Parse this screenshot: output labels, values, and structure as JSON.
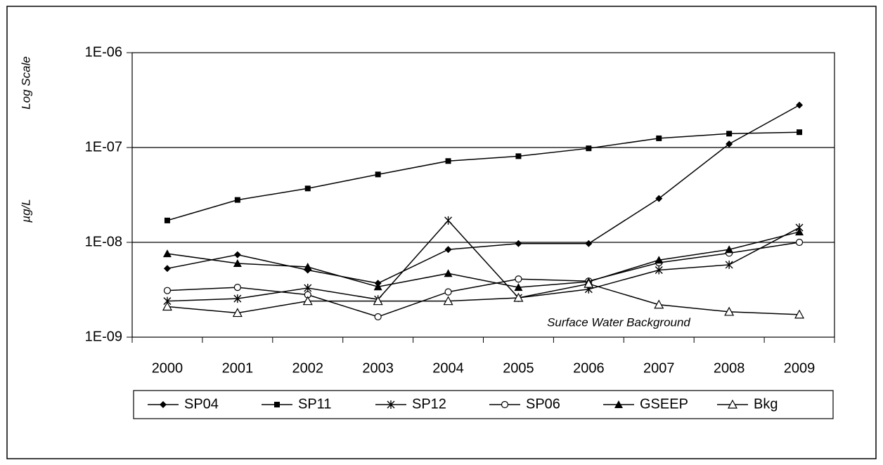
{
  "chart_data": {
    "type": "line",
    "axis_labels": [
      "Log Scale",
      "µg/L"
    ],
    "annotation": "Surface Water Background",
    "categories": [
      "2000",
      "2001",
      "2002",
      "2003",
      "2004",
      "2005",
      "2006",
      "2007",
      "2008",
      "2009"
    ],
    "log_scale": true,
    "grid": true,
    "legend": "bottom",
    "ylim": [
      1e-09,
      1e-06
    ],
    "yticks": [
      {
        "value": 1e-09,
        "label": "1E-09"
      },
      {
        "value": 1e-08,
        "label": "1E-08"
      },
      {
        "value": 1e-07,
        "label": "1E-07"
      },
      {
        "value": 1e-06,
        "label": "1E-06"
      }
    ],
    "series": [
      {
        "name": "SP04",
        "color": "#000000",
        "marker": "diamond",
        "values": [
          5.3e-09,
          7.4e-09,
          5.1e-09,
          3.7e-09,
          8.4e-09,
          9.7e-09,
          9.7e-09,
          2.9e-08,
          1.09e-07,
          2.8e-07
        ]
      },
      {
        "name": "SP11",
        "color": "#000000",
        "marker": "square",
        "values": [
          1.7e-08,
          2.8e-08,
          3.7e-08,
          5.2e-08,
          7.2e-08,
          8.1e-08,
          9.8e-08,
          1.25e-07,
          1.4e-07,
          1.45e-07
        ]
      },
      {
        "name": "SP12",
        "color": "#000000",
        "marker": "star",
        "values": [
          2.4e-09,
          2.55e-09,
          3.3e-09,
          2.5e-09,
          1.7e-08,
          2.6e-09,
          3.2e-09,
          5.1e-09,
          5.8e-09,
          1.43e-08
        ]
      },
      {
        "name": "SP06",
        "color": "#000000",
        "marker": "open-circle",
        "values": [
          3.1e-09,
          3.35e-09,
          2.8e-09,
          1.64e-09,
          3e-09,
          4.1e-09,
          3.9e-09,
          6.1e-09,
          7.7e-09,
          1e-08
        ]
      },
      {
        "name": "GSEEP",
        "color": "#000000",
        "marker": "triangle",
        "values": [
          7.6e-09,
          6e-09,
          5.5e-09,
          3.4e-09,
          4.7e-09,
          3.35e-09,
          3.85e-09,
          6.5e-09,
          8.4e-09,
          1.29e-08
        ]
      },
      {
        "name": "Bkg",
        "color": "#000000",
        "marker": "open-triangle",
        "values": [
          2.1e-09,
          1.8e-09,
          2.4e-09,
          2.4e-09,
          2.4e-09,
          2.6e-09,
          3.65e-09,
          2.2e-09,
          1.85e-09,
          1.73e-09
        ]
      }
    ]
  }
}
